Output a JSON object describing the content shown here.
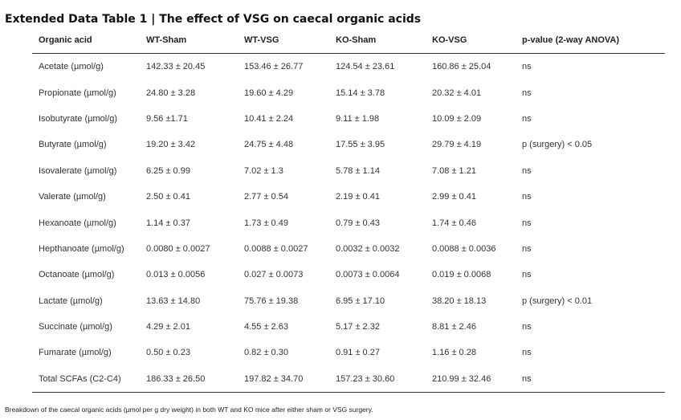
{
  "title": "Extended Data Table 1 | The effect of VSG on caecal organic acids",
  "table": {
    "headers": [
      "Organic acid",
      "WT-Sham",
      "WT-VSG",
      "KO-Sham",
      "KO-VSG",
      "p-value (2-way  ANOVA)"
    ],
    "rows": [
      [
        "Acetate (µmol/g)",
        "142.33 ± 20.45",
        "153.46 ± 26.77",
        "124.54 ± 23.61",
        "160.86 ± 25.04",
        "ns"
      ],
      [
        "Propionate  (µmol/g)",
        "24.80 ± 3.28",
        "19.60 ± 4.29",
        "15.14 ± 3.78",
        "20.32 ± 4.01",
        "ns"
      ],
      [
        "Isobutyrate (µmol/g)",
        "9.56 ±1.71",
        "10.41 ± 2.24",
        "9.11 ± 1.98",
        "10.09 ± 2.09",
        "ns"
      ],
      [
        "Butyrate (µmol/g)",
        "19.20 ± 3.42",
        "24.75 ± 4.48",
        "17.55 ± 3.95",
        "29.79 ± 4.19",
        "p (surgery) < 0.05"
      ],
      [
        "Isovalerate (µmol/g)",
        "6.25 ± 0.99",
        "7.02 ± 1.3",
        "5.78 ± 1.14",
        "7.08 ± 1.21",
        "ns"
      ],
      [
        "Valerate (µmol/g)",
        "2.50 ± 0.41",
        "2.77 ± 0.54",
        "2.19 ± 0.41",
        "2.99 ± 0.41",
        "ns"
      ],
      [
        "Hexanoate  (µmol/g)",
        "1.14 ± 0.37",
        "1.73 ± 0.49",
        "0.79 ± 0.43",
        "1.74 ± 0.46",
        "ns"
      ],
      [
        "Hepthanoate  (µmol/g)",
        "0.0080 ± 0.0027",
        "0.0088 ± 0.0027",
        "0.0032 ± 0.0032",
        "0.0088 ± 0.0036",
        "ns"
      ],
      [
        "Octanoate  (µmol/g)",
        "0.013 ± 0.0056",
        "0.027 ± 0.0073",
        "0.0073 ± 0.0064",
        "0.019 ± 0.0068",
        "ns"
      ],
      [
        "Lactate (µmol/g)",
        "13.63 ± 14.80",
        "75.76 ± 19.38",
        "6.95 ± 17.10",
        "38.20 ± 18.13",
        "p (surgery) < 0.01"
      ],
      [
        "Succinate (µmol/g)",
        "4.29 ± 2.01",
        "4.55 ± 2.63",
        "5.17 ± 2.32",
        "8.81 ± 2.46",
        "ns"
      ],
      [
        "Fumarate (µmol/g)",
        "0.50 ± 0.23",
        "0.82 ± 0.30",
        "0.91 ± 0.27",
        "1.16 ± 0.28",
        "ns"
      ],
      [
        "Total SCFAs (C2-C4)",
        "186.33 ± 26.50",
        "197.82 ± 34.70",
        "157.23 ± 30.60",
        "210.99 ± 32.46",
        "ns"
      ]
    ]
  },
  "caption": "Breakdown of the caecal organic acids (µmol per g dry weight) in both WT and KO mice after either sham or VSG surgery."
}
